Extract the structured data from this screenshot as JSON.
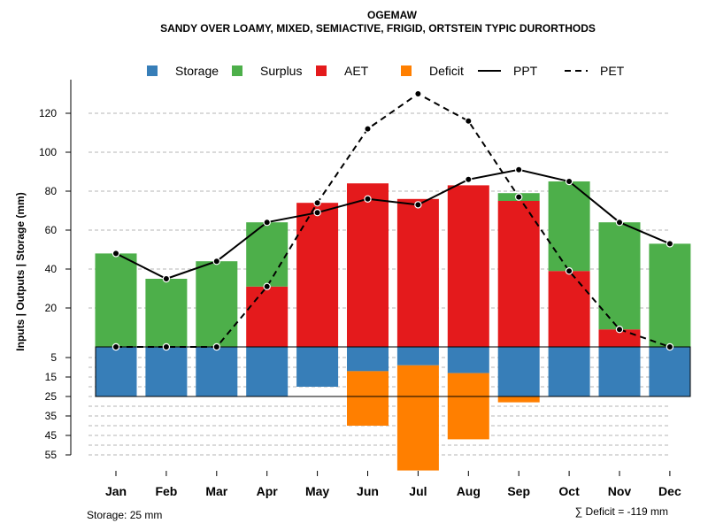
{
  "chart_data": {
    "type": "bar",
    "title": "OGEMAW",
    "subtitle": "SANDY OVER LOAMY, MIXED, SEMIACTIVE, FRIGID, ORTSTEIN TYPIC DURORTHODS",
    "ylabel": "Inputs | Outputs | Storage    (mm)",
    "categories": [
      "Jan",
      "Feb",
      "Mar",
      "Apr",
      "May",
      "Jun",
      "Jul",
      "Aug",
      "Sep",
      "Oct",
      "Nov",
      "Dec"
    ],
    "upper_ticks": [
      20,
      40,
      60,
      80,
      100,
      120
    ],
    "lower_ticks": [
      5,
      15,
      25,
      35,
      45,
      55
    ],
    "ylim_upper": [
      0,
      130
    ],
    "ylim_lower": [
      0,
      55
    ],
    "series": [
      {
        "name": "AET",
        "color": "#E41A1C",
        "values": [
          0,
          0,
          0,
          31,
          74,
          84,
          76,
          83,
          75,
          39,
          9,
          0
        ]
      },
      {
        "name": "Surplus",
        "color": "#4DAF4A",
        "values": [
          48,
          35,
          44,
          33,
          0,
          0,
          0,
          0,
          4,
          46,
          55,
          53
        ]
      },
      {
        "name": "Storage",
        "color": "#377EB8",
        "values": [
          25,
          25,
          25,
          25,
          20,
          12,
          9,
          13,
          25,
          25,
          25,
          25
        ]
      },
      {
        "name": "Deficit",
        "color": "#FF7F00",
        "values": [
          0,
          0,
          0,
          0,
          0,
          28,
          54,
          34,
          3,
          0,
          0,
          0
        ]
      },
      {
        "name": "PPT",
        "color": "#000000",
        "values": [
          48,
          35,
          44,
          64,
          69,
          76,
          73,
          86,
          91,
          85,
          64,
          53
        ]
      },
      {
        "name": "PET",
        "color": "#000000",
        "values": [
          0,
          0,
          0,
          31,
          74,
          112,
          130,
          116,
          77,
          39,
          9,
          0
        ]
      }
    ],
    "storage_reference": 25,
    "legend": [
      {
        "label": "Storage",
        "kind": "box",
        "color": "#377EB8"
      },
      {
        "label": "Surplus",
        "kind": "box",
        "color": "#4DAF4A"
      },
      {
        "label": "AET",
        "kind": "box",
        "color": "#E41A1C"
      },
      {
        "label": "Deficit",
        "kind": "box",
        "color": "#FF7F00"
      },
      {
        "label": "PPT",
        "kind": "solid"
      },
      {
        "label": "PET",
        "kind": "dashed"
      }
    ],
    "storage_note": "Storage: 25 mm",
    "deficit_note": "∑ Deficit = -119 mm"
  }
}
